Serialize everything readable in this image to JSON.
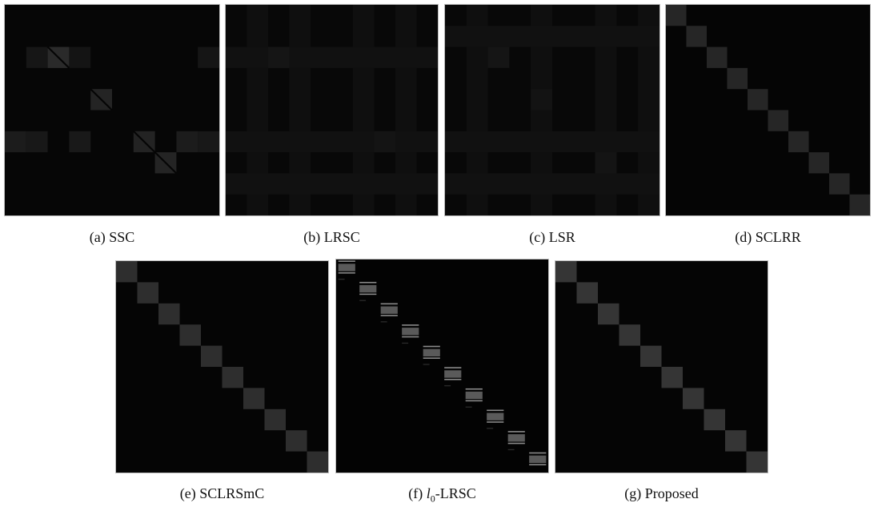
{
  "figure": {
    "panels": [
      {
        "id": "a",
        "label": "(a)",
        "name": "SSC"
      },
      {
        "id": "b",
        "label": "(b)",
        "name": "LRSC"
      },
      {
        "id": "c",
        "label": "(c)",
        "name": "LSR"
      },
      {
        "id": "d",
        "label": "(d)",
        "name": "SCLRR"
      },
      {
        "id": "e",
        "label": "(e)",
        "name": "SCLRSmC"
      },
      {
        "id": "f",
        "label": "(f)",
        "name": "-LRSC",
        "name_math": "l",
        "name_math_sub": "0"
      },
      {
        "id": "g",
        "label": "(g)",
        "name": "Proposed"
      }
    ]
  }
}
